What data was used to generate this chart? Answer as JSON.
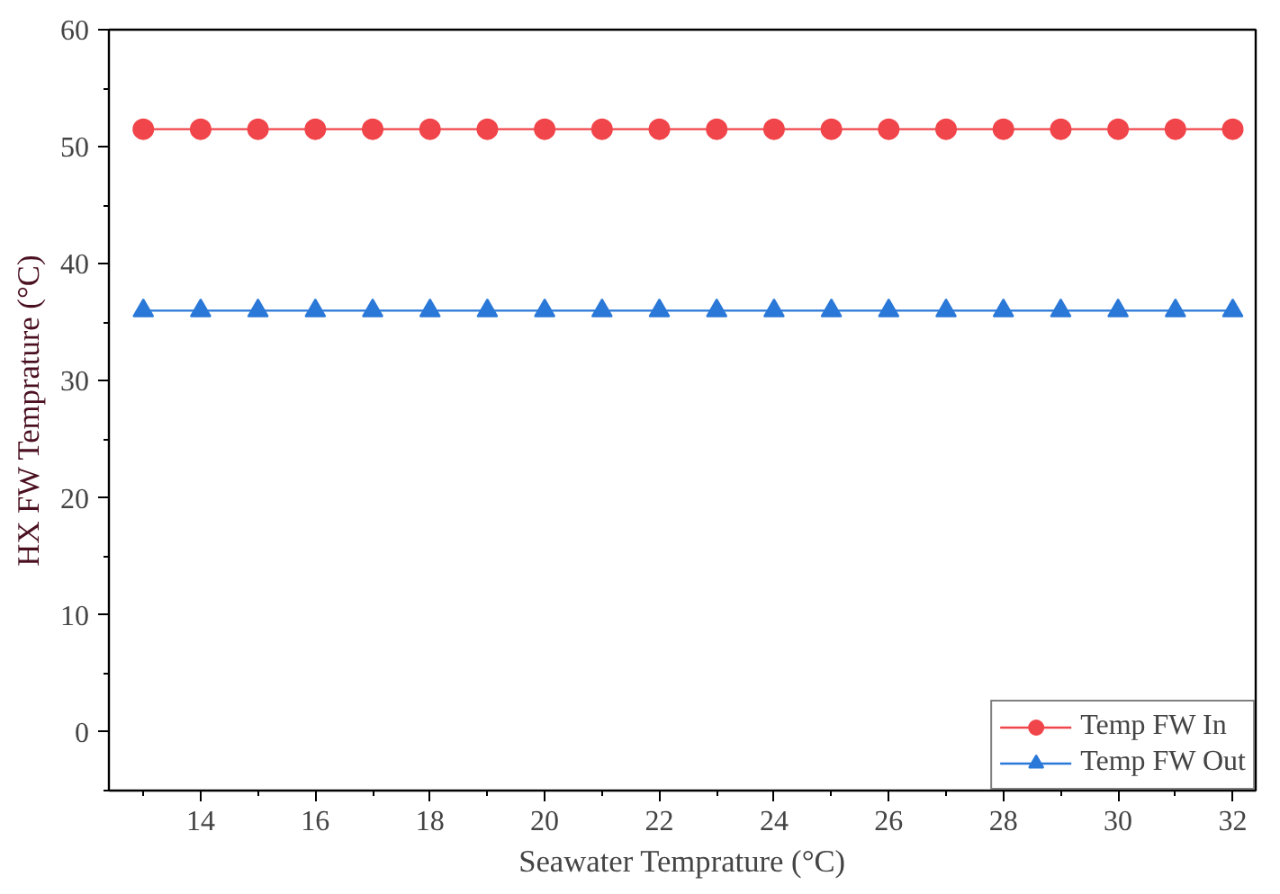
{
  "chart_data": {
    "type": "line",
    "xlabel": "Seawater Temprature (°C)",
    "ylabel": "HX FW Temprature (°C)",
    "x": [
      13,
      14,
      15,
      16,
      17,
      18,
      19,
      20,
      21,
      22,
      23,
      24,
      25,
      26,
      27,
      28,
      29,
      30,
      31,
      32
    ],
    "series": [
      {
        "name": "Temp FW In",
        "color": "#f0454a",
        "marker": "circle",
        "values": [
          51.5,
          51.5,
          51.5,
          51.5,
          51.5,
          51.5,
          51.5,
          51.5,
          51.5,
          51.5,
          51.5,
          51.5,
          51.5,
          51.5,
          51.5,
          51.5,
          51.5,
          51.5,
          51.5,
          51.5
        ]
      },
      {
        "name": "Temp FW Out",
        "color": "#2a78d8",
        "marker": "triangle",
        "values": [
          36,
          36,
          36,
          36,
          36,
          36,
          36,
          36,
          36,
          36,
          36,
          36,
          36,
          36,
          36,
          36,
          36,
          36,
          36,
          36
        ]
      }
    ],
    "xlim": [
      12.4,
      32.4
    ],
    "ylim": [
      -5,
      60
    ],
    "xticks": [
      14,
      16,
      18,
      20,
      22,
      24,
      26,
      28,
      30,
      32
    ],
    "yticks": [
      0,
      10,
      20,
      30,
      40,
      50,
      60
    ],
    "grid": false,
    "legend": "bottom right",
    "line_style": "solid"
  }
}
